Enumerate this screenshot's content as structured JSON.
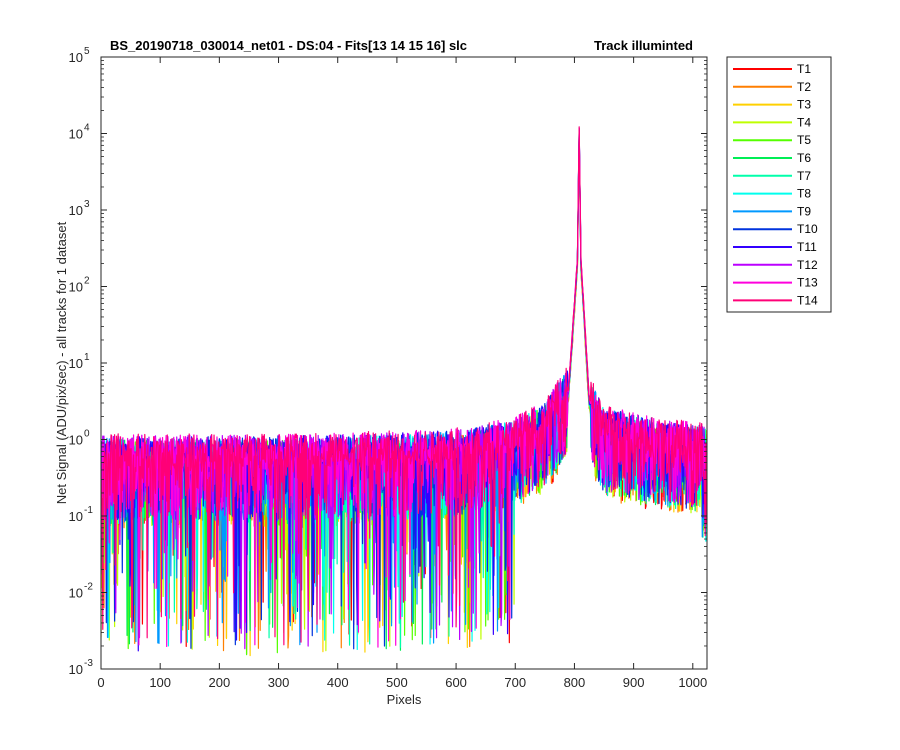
{
  "chart_data": {
    "type": "line",
    "title_left": "BS_20190718_030014_net01 - DS:04 - Fits[13  14  15  16]   slc",
    "title_right": "Track illuminted",
    "xlabel": "Pixels",
    "ylabel": "Net Signal (ADU/pix/sec) - all tracks for 1 dataset",
    "xlim": [
      0,
      1024
    ],
    "ylim": [
      0.001,
      100000
    ],
    "yscale": "log",
    "x_ticks": [
      "0",
      "100",
      "200",
      "300",
      "400",
      "500",
      "600",
      "700",
      "800",
      "900",
      "1000"
    ],
    "y_ticks": [
      {
        "base": "10",
        "exp": "-3"
      },
      {
        "base": "10",
        "exp": "-2"
      },
      {
        "base": "10",
        "exp": "-1"
      },
      {
        "base": "10",
        "exp": "0"
      },
      {
        "base": "10",
        "exp": "1"
      },
      {
        "base": "10",
        "exp": "2"
      },
      {
        "base": "10",
        "exp": "3"
      },
      {
        "base": "10",
        "exp": "4"
      },
      {
        "base": "10",
        "exp": "5"
      }
    ],
    "grid": false,
    "legend_position": "outside-right",
    "peak": {
      "x": 808,
      "y": 10500
    },
    "baseline_profile": [
      [
        0,
        0.5
      ],
      [
        100,
        0.5
      ],
      [
        300,
        0.5
      ],
      [
        500,
        0.55
      ],
      [
        600,
        0.6
      ],
      [
        700,
        0.85
      ],
      [
        750,
        1.4
      ],
      [
        790,
        4
      ],
      [
        805,
        200
      ],
      [
        808,
        10500
      ],
      [
        811,
        200
      ],
      [
        825,
        3
      ],
      [
        850,
        1.2
      ],
      [
        950,
        0.8
      ],
      [
        1024,
        0.7
      ]
    ],
    "series": [
      {
        "name": "T1",
        "color": "#ff0000"
      },
      {
        "name": "T2",
        "color": "#ff7f00"
      },
      {
        "name": "T3",
        "color": "#ffd000"
      },
      {
        "name": "T4",
        "color": "#bfff00"
      },
      {
        "name": "T5",
        "color": "#55ff00"
      },
      {
        "name": "T6",
        "color": "#00ee55"
      },
      {
        "name": "T7",
        "color": "#00ffaa"
      },
      {
        "name": "T8",
        "color": "#00ffee"
      },
      {
        "name": "T9",
        "color": "#0099ff"
      },
      {
        "name": "T10",
        "color": "#0033dd"
      },
      {
        "name": "T11",
        "color": "#3300ff"
      },
      {
        "name": "T12",
        "color": "#bb00ff"
      },
      {
        "name": "T13",
        "color": "#ff00dd"
      },
      {
        "name": "T14",
        "color": "#ff0077"
      }
    ]
  }
}
